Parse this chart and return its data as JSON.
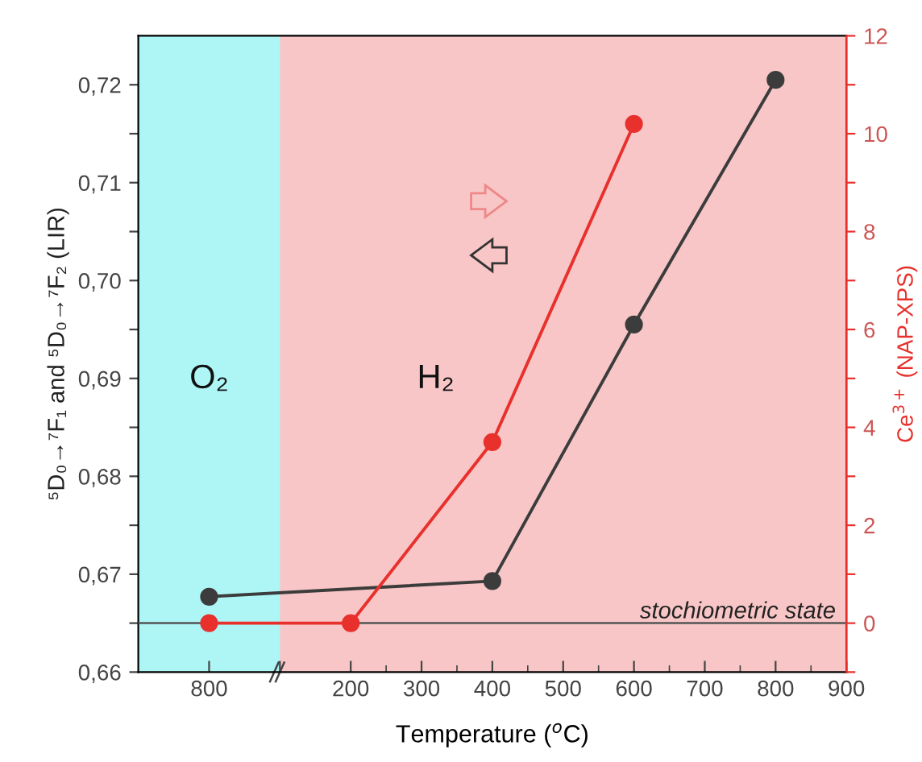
{
  "chart_data": {
    "type": "line",
    "xlabel": "Temperature ($^{o}$C)",
    "ylabel": "⁵D₀→⁷F₁ and ⁵D₀→⁷F₂ (LIR)",
    "y2label": "Ce$^{3+}$ (NAP-XPS)",
    "categories": [
      "800",
      null,
      "200",
      "300",
      "400",
      "500",
      "600",
      "700",
      "800",
      "900"
    ],
    "series": [
      {
        "color": "#3c3c3c",
        "values": [
          0.6677,
          null,
          null,
          null,
          0.6693,
          null,
          0.6955,
          null,
          0.7205,
          null
        ]
      },
      {
        "color": "#e8302c",
        "values": [
          0,
          null,
          0,
          null,
          3.7,
          null,
          10.2,
          null,
          null,
          null
        ],
        "axis": "y2"
      }
    ],
    "ylim": [
      0.66,
      0.725
    ],
    "yticks": [
      {
        "value": 0.66,
        "label": "0,66"
      },
      {
        "value": 0.665,
        "label": null
      },
      {
        "value": 0.67,
        "label": "0,67"
      },
      {
        "value": 0.675,
        "label": null
      },
      {
        "value": 0.68,
        "label": "0,68"
      },
      {
        "value": 0.685,
        "label": null
      },
      {
        "value": 0.69,
        "label": "0,69"
      },
      {
        "value": 0.695,
        "label": null
      },
      {
        "value": 0.7,
        "label": "0,70"
      },
      {
        "value": 0.705,
        "label": null
      },
      {
        "value": 0.71,
        "label": "0,71"
      },
      {
        "value": 0.715,
        "label": null
      },
      {
        "value": 0.72,
        "label": "0,72"
      }
    ],
    "y2lim": [
      -1,
      12
    ],
    "y2ticks": [
      {
        "value": -1,
        "label": null
      },
      0,
      {
        "value": 1,
        "label": null
      },
      2,
      {
        "value": 3,
        "label": null
      },
      4,
      {
        "value": 5,
        "label": null
      },
      6,
      {
        "value": 7,
        "label": null
      },
      8,
      {
        "value": 9,
        "label": null
      },
      10,
      {
        "value": 11,
        "label": null
      },
      12
    ],
    "marker": "circle",
    "line_style": "solid",
    "grid": false,
    "legend": false,
    "annotations": [
      "O₂",
      "H₂"
    ],
    "ref_lines": [
      {
        "axis": "y2",
        "value": 0,
        "label": "stochiometric state",
        "color": "#555555"
      }
    ]
  }
}
